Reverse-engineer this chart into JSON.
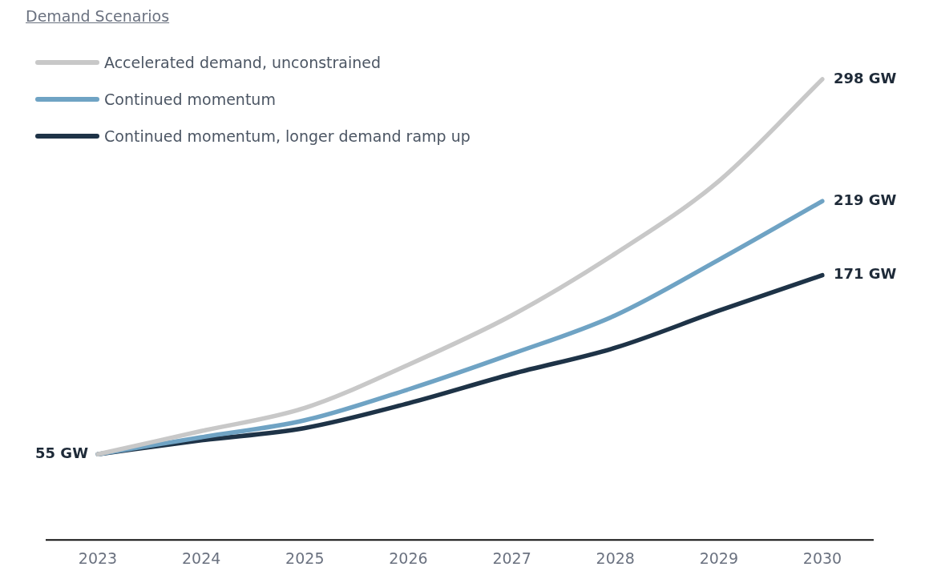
{
  "chart_data": {
    "type": "line",
    "title": "Demand Scenarios",
    "categories": [
      "2023",
      "2024",
      "2025",
      "2026",
      "2027",
      "2028",
      "2029",
      "2030"
    ],
    "series": [
      {
        "name": "Accelerated demand, unconstrained",
        "color": "#c8c8c8",
        "values": [
          55,
          70,
          85,
          113,
          145,
          185,
          232,
          298
        ],
        "value_labels": [
          null,
          null,
          null,
          null,
          null,
          null,
          null,
          "298 GW"
        ]
      },
      {
        "name": "Continued momentum",
        "color": "#6fa3c4",
        "values": [
          55,
          66,
          77,
          97,
          120,
          145,
          181,
          219
        ],
        "value_labels": [
          null,
          null,
          null,
          null,
          null,
          null,
          null,
          "219 GW"
        ]
      },
      {
        "name": "Continued momentum, longer demand ramp up",
        "color": "#1e3347",
        "values": [
          55,
          64,
          72,
          88,
          107,
          124,
          148,
          171
        ],
        "value_labels": [
          "55 GW",
          null,
          null,
          null,
          null,
          null,
          null,
          "171 GW"
        ]
      }
    ],
    "tick_labels": "x",
    "grid": false,
    "legend": "top left",
    "marker": "none",
    "line_style": "solid"
  }
}
